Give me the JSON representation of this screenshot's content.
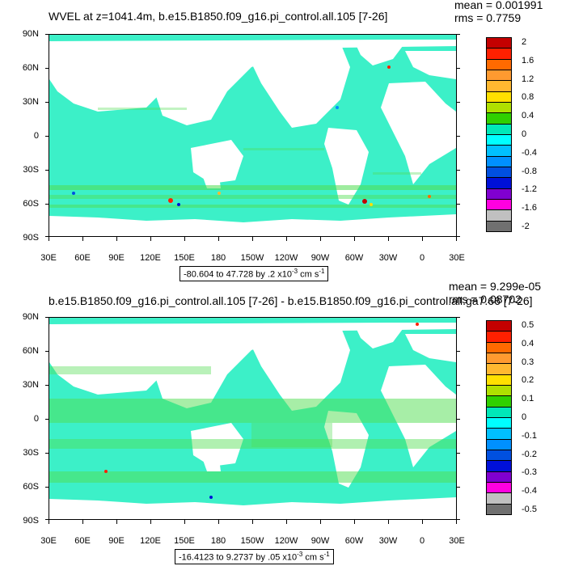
{
  "top": {
    "title": "WVEL at z=1041.4m, b.e15.B1850.f09_g16.pi_control.all.105 [7-26]",
    "mean": "mean = 0.001991",
    "rms": "rms = 0.7759",
    "range_label": "-80.604 to 47.728 by .2 x10",
    "range_exp": "-3",
    "range_unit": " cm s",
    "range_unit_exp": "-1",
    "colorbar_labels": [
      "2",
      "1.6",
      "1.2",
      "0.8",
      "0.4",
      "0",
      "-0.4",
      "-0.8",
      "-1.2",
      "-1.6",
      "-2"
    ]
  },
  "bottom": {
    "title": "b.e15.B1850.f09_g16.pi_control.all.105 [7-26] - b.e15.B1850.f09_g16.pi_control.all.ga7.66 [7-26]",
    "mean": "mean = 9.299e-05",
    "rms": "rms = 0.08702",
    "range_label": "-16.4123 to 9.2737 by .05 x10",
    "range_exp": "-3",
    "range_unit": " cm s",
    "range_unit_exp": "-1",
    "colorbar_labels": [
      "0.5",
      "0.4",
      "0.3",
      "0.2",
      "0.1",
      "0",
      "-0.1",
      "-0.2",
      "-0.3",
      "-0.4",
      "-0.5"
    ]
  },
  "lat_labels": [
    "90N",
    "60N",
    "30N",
    "0",
    "30S",
    "60S",
    "90S"
  ],
  "lon_labels": [
    "30E",
    "60E",
    "90E",
    "120E",
    "150E",
    "180",
    "150W",
    "120W",
    "90W",
    "60W",
    "30W",
    "0",
    "30E"
  ],
  "colorbar_colors": [
    "#c40000",
    "#ff2000",
    "#ff6a00",
    "#ff9a30",
    "#ffb830",
    "#ffe000",
    "#b0e000",
    "#30d000",
    "#00e8b8",
    "#00ffff",
    "#00c0ff",
    "#0090ff",
    "#0050e0",
    "#0010d8",
    "#8000d0",
    "#ff00e0",
    "#c0c0c0",
    "#707070"
  ],
  "ocean_color": "#3cf0c8",
  "ocean_green": "#50dd50"
}
